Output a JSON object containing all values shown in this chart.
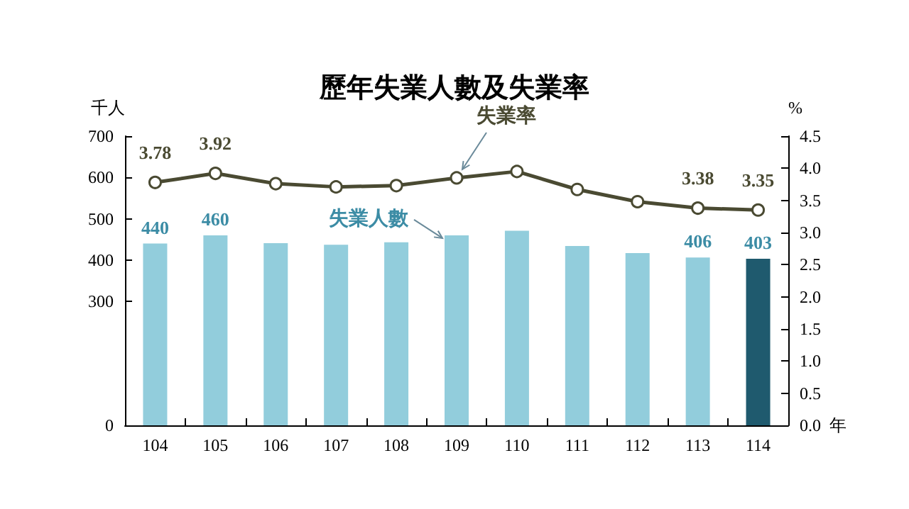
{
  "chart_data": {
    "type": "bar",
    "title": "歷年失業人數及失業率",
    "ylabel": "千人",
    "y2label": "%",
    "xlabel": "年",
    "categories": [
      "104",
      "105",
      "106",
      "107",
      "108",
      "109",
      "110",
      "111",
      "112",
      "113",
      "114"
    ],
    "series": [
      {
        "name": "失業人數",
        "colors": [
          "#92cddc",
          "#92cddc",
          "#92cddc",
          "#92cddc",
          "#92cddc",
          "#92cddc",
          "#92cddc",
          "#92cddc",
          "#92cddc",
          "#92cddc",
          "#1f5a6e"
        ],
        "color": "#3c8ca5",
        "values": [
          440,
          460,
          441,
          437,
          443,
          460,
          471,
          434,
          417,
          406,
          403
        ],
        "value_labels": [
          "440",
          "460",
          null,
          null,
          null,
          null,
          null,
          null,
          null,
          "406",
          "403"
        ]
      },
      {
        "name": "失業率",
        "type": "line",
        "axis": "y2",
        "color": "#4a4a32",
        "marker": "circle",
        "values": [
          3.78,
          3.92,
          3.76,
          3.71,
          3.73,
          3.85,
          3.95,
          3.67,
          3.48,
          3.38,
          3.35
        ],
        "value_labels": [
          "3.78",
          "3.92",
          null,
          null,
          null,
          null,
          null,
          null,
          null,
          "3.38",
          "3.35"
        ]
      }
    ],
    "ylim": [
      0,
      700
    ],
    "yticks": [
      0,
      300,
      400,
      500,
      600,
      700
    ],
    "y2lim": [
      0,
      4.5
    ],
    "y2ticks": [
      {
        "value": 0,
        "label": "0.0"
      },
      0.5,
      {
        "value": 1,
        "label": "1.0"
      },
      1.5,
      {
        "value": 2,
        "label": "2.0"
      },
      2.5,
      {
        "value": 3,
        "label": "3.0"
      },
      3.5,
      {
        "value": 4,
        "label": "4.0"
      },
      4.5
    ],
    "grid": false,
    "legend": false
  }
}
